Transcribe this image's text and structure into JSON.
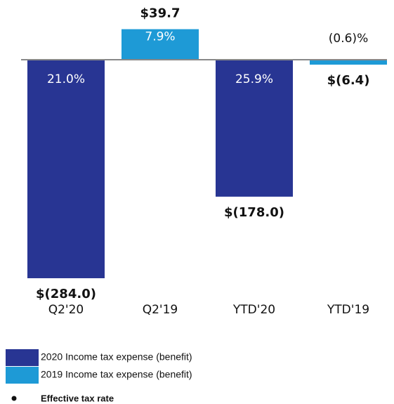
{
  "chart_data": {
    "type": "bar",
    "categories": [
      "Q2'20",
      "Q2'19",
      "YTD'20",
      "YTD'19"
    ],
    "series": [
      {
        "name": "2020 Income tax expense (benefit)",
        "color": "#283593",
        "values": [
          -284.0,
          null,
          -178.0,
          null
        ],
        "value_labels": [
          "$(284.0)",
          null,
          "$(178.0)",
          null
        ]
      },
      {
        "name": "2019 Income tax expense (benefit)",
        "color": "#1e9ad6",
        "values": [
          null,
          39.7,
          null,
          -6.4
        ],
        "value_labels": [
          null,
          "$39.7",
          null,
          "$(6.4)"
        ]
      }
    ],
    "rate_labels": [
      "21.0%",
      "7.9%",
      "25.9%",
      "(0.6)%"
    ],
    "rate_legend": "Effective tax rate"
  }
}
